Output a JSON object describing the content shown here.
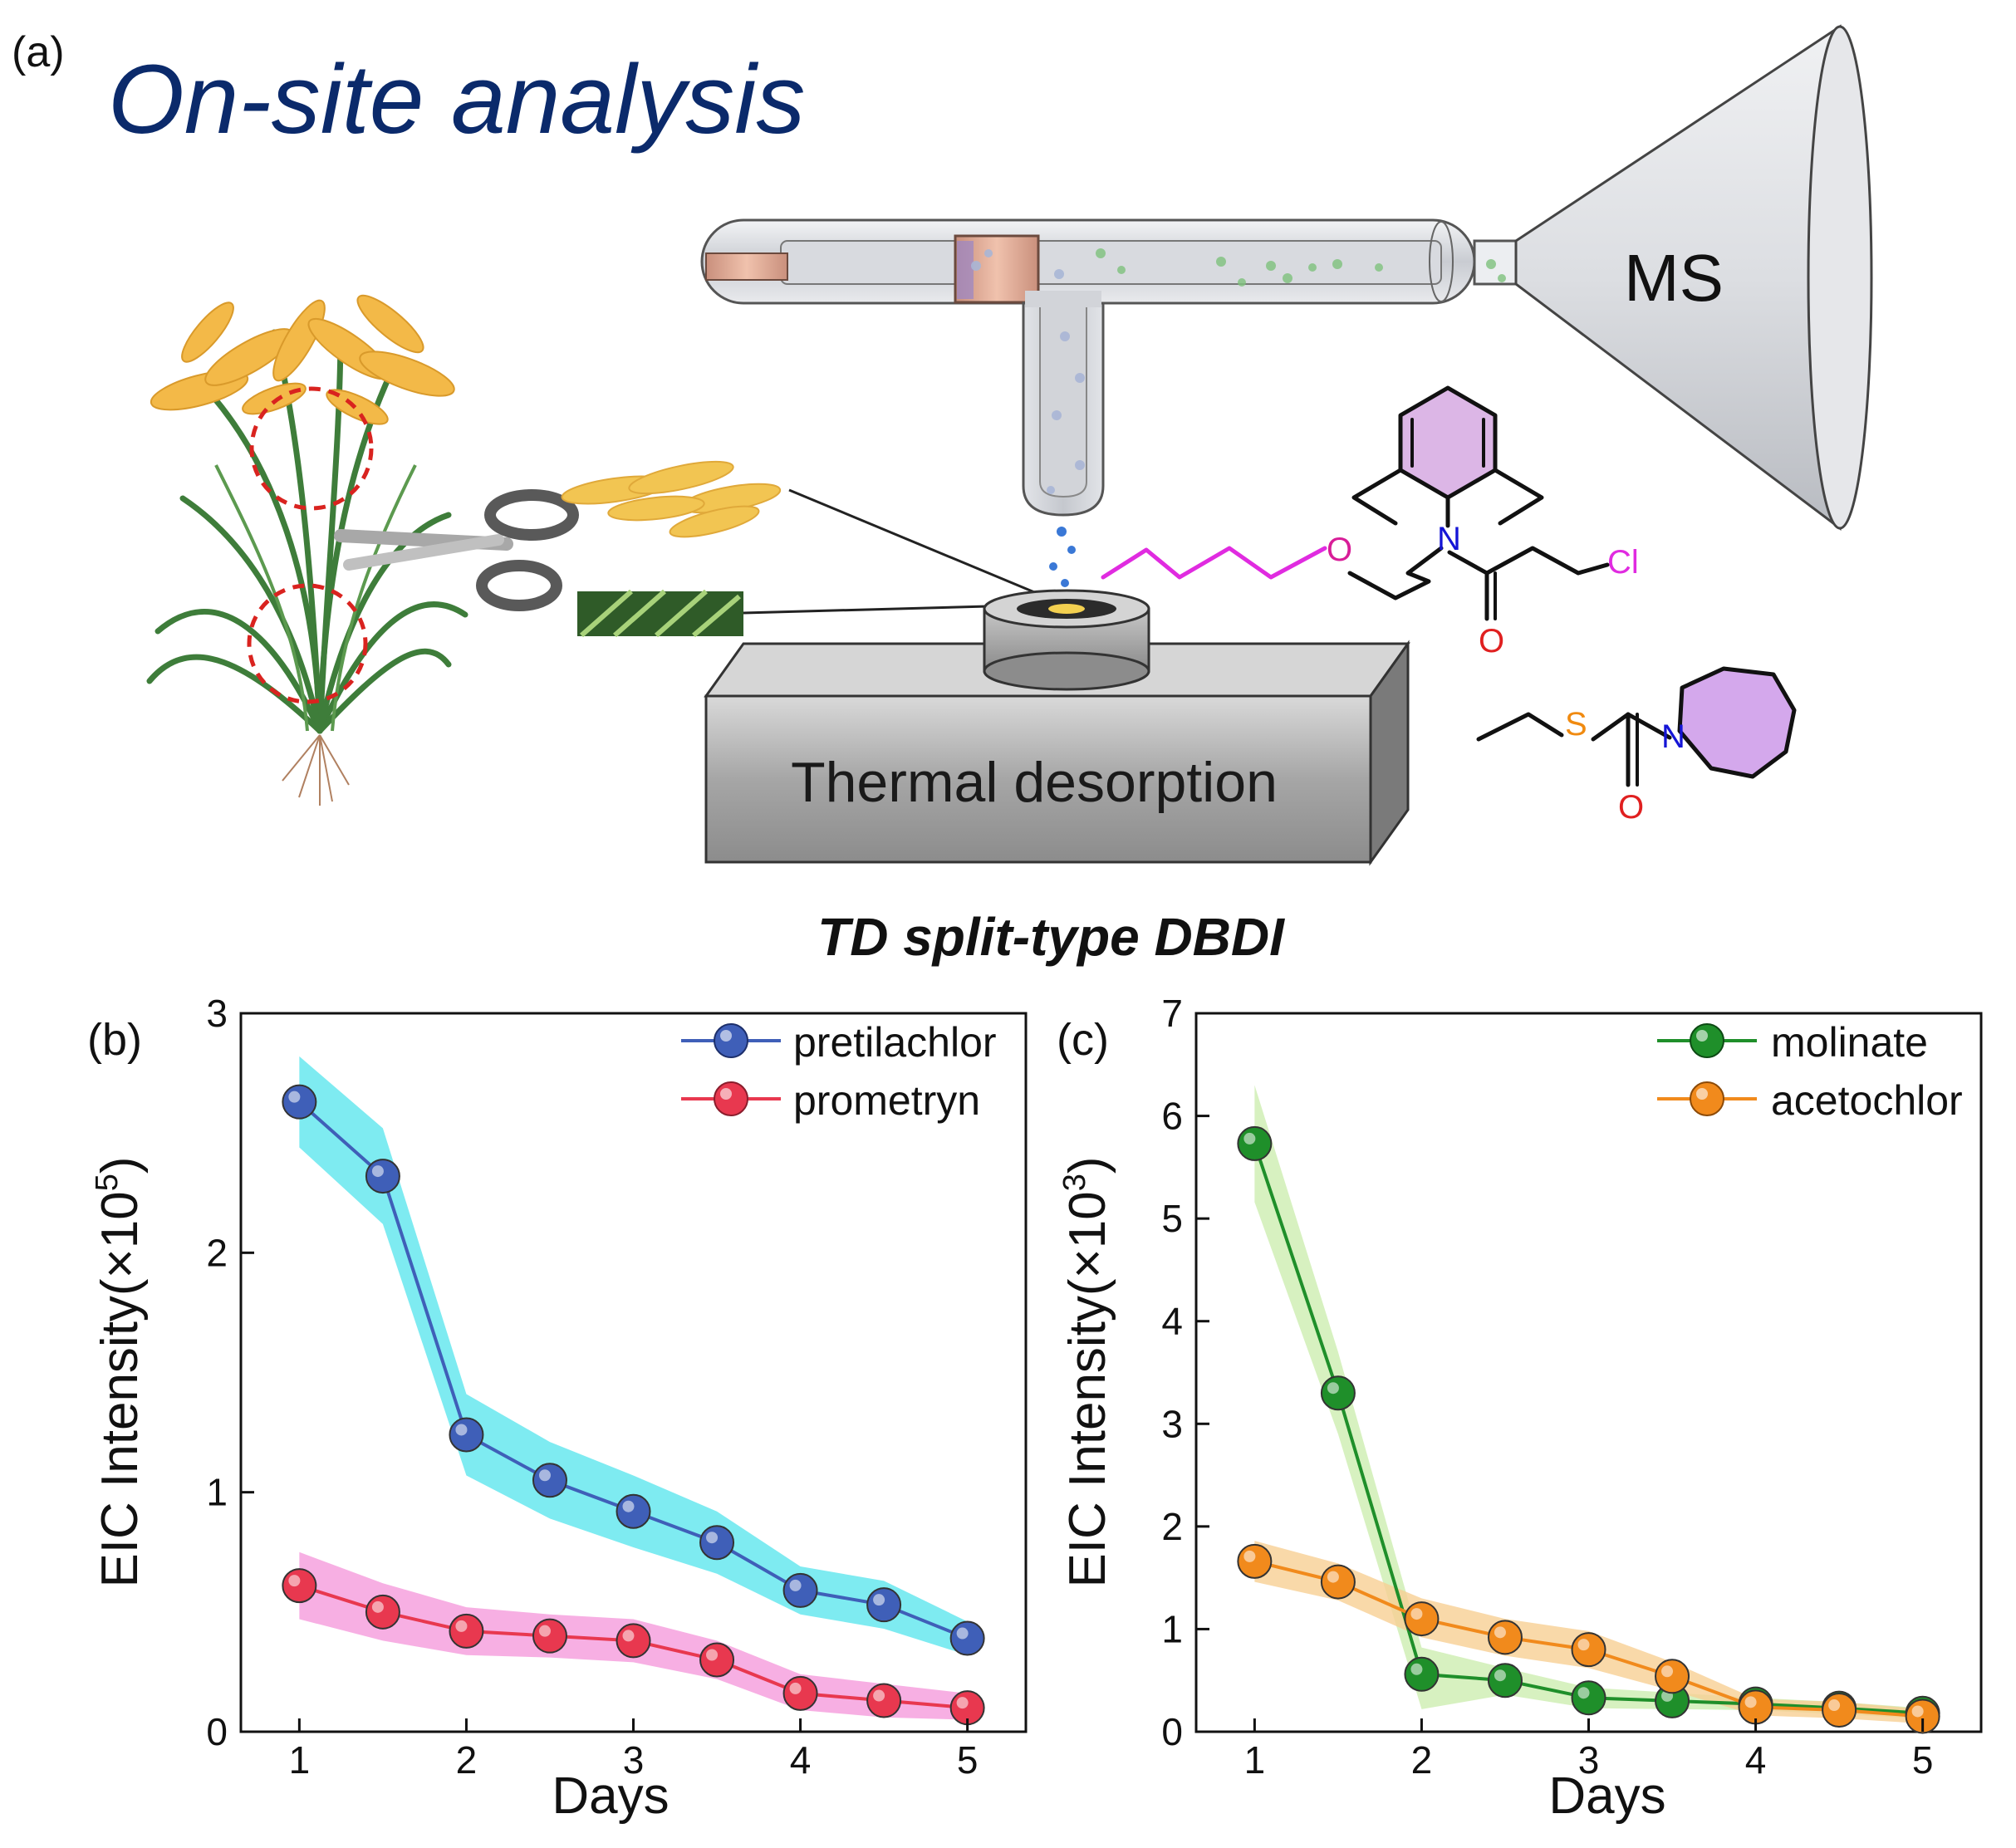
{
  "panel_a": {
    "label": "(a)",
    "title": "On-site analysis",
    "ms_label": "MS",
    "desorption_label": "Thermal desorption",
    "caption": "TD split-type DBDI",
    "molecule1_atoms": {
      "n": "N",
      "o_chain": "O",
      "o_carbonyl": "O",
      "cl": "Cl"
    },
    "molecule2_atoms": {
      "s": "S",
      "n": "N",
      "o": "O"
    }
  },
  "colors": {
    "title_blue": "#0b2a6b",
    "pretilachlor": "#3f5fb8",
    "pretilachlor_band": "#5ee6ee",
    "prometryn": "#e8384f",
    "prometryn_band": "#f59bdc",
    "molinate": "#1f8f2a",
    "molinate_band": "#cdeeb0",
    "acetochlor": "#f18a1c",
    "acetochlor_band": "#f7cf94"
  },
  "chart_data": [
    {
      "panel_label": "(b)",
      "type": "line",
      "xlabel": "Days",
      "ylabel": "EIC Intensity(×10",
      "ylabel_exp": "5",
      "ylabel_close": ")",
      "xlim": [
        0.65,
        5.35
      ],
      "ylim": [
        0,
        3
      ],
      "xticks": [
        1,
        2,
        3,
        4,
        5
      ],
      "yticks": [
        0,
        1,
        2,
        3
      ],
      "legend_position": "top-right",
      "x": [
        1,
        1.5,
        2,
        2.5,
        3,
        3.5,
        4,
        4.5,
        5
      ],
      "series": [
        {
          "name": "pretilachlor",
          "color_key": "pretilachlor",
          "band_key": "pretilachlor_band",
          "values": [
            2.63,
            2.32,
            1.24,
            1.05,
            0.92,
            0.79,
            0.59,
            0.53,
            0.39
          ],
          "upper": [
            2.82,
            2.52,
            1.41,
            1.21,
            1.07,
            0.92,
            0.69,
            0.63,
            0.46
          ],
          "lower": [
            2.44,
            2.12,
            1.07,
            0.89,
            0.77,
            0.66,
            0.49,
            0.43,
            0.32
          ]
        },
        {
          "name": "prometryn",
          "color_key": "prometryn",
          "band_key": "prometryn_band",
          "values": [
            0.61,
            0.5,
            0.42,
            0.4,
            0.38,
            0.3,
            0.16,
            0.13,
            0.1
          ],
          "upper": [
            0.75,
            0.62,
            0.52,
            0.49,
            0.47,
            0.38,
            0.24,
            0.2,
            0.16
          ],
          "lower": [
            0.47,
            0.38,
            0.32,
            0.31,
            0.29,
            0.22,
            0.09,
            0.06,
            0.05
          ]
        }
      ]
    },
    {
      "panel_label": "(c)",
      "type": "line",
      "xlabel": "Days",
      "ylabel": "EIC Intensity(×10",
      "ylabel_exp": "3",
      "ylabel_close": ")",
      "xlim": [
        0.65,
        5.35
      ],
      "ylim": [
        0,
        7
      ],
      "xticks": [
        1,
        2,
        3,
        4,
        5
      ],
      "yticks": [
        0,
        1,
        2,
        3,
        4,
        5,
        6,
        7
      ],
      "legend_position": "top-right",
      "x": [
        1,
        1.5,
        2,
        2.5,
        3,
        3.5,
        4,
        4.5,
        5
      ],
      "series": [
        {
          "name": "molinate",
          "color_key": "molinate",
          "band_key": "molinate_band",
          "values": [
            5.73,
            3.3,
            0.56,
            0.5,
            0.33,
            0.3,
            0.27,
            0.23,
            0.18
          ],
          "upper": [
            6.3,
            3.7,
            0.82,
            0.62,
            0.43,
            0.38,
            0.33,
            0.29,
            0.23
          ],
          "lower": [
            5.16,
            2.9,
            0.22,
            0.36,
            0.23,
            0.22,
            0.21,
            0.17,
            0.13
          ]
        },
        {
          "name": "acetochlor",
          "color_key": "acetochlor",
          "band_key": "acetochlor_band",
          "values": [
            1.66,
            1.46,
            1.1,
            0.92,
            0.8,
            0.54,
            0.24,
            0.21,
            0.15
          ],
          "upper": [
            1.86,
            1.64,
            1.3,
            1.1,
            0.98,
            0.68,
            0.32,
            0.29,
            0.22
          ],
          "lower": [
            1.46,
            1.28,
            0.92,
            0.74,
            0.62,
            0.4,
            0.16,
            0.13,
            0.08
          ]
        }
      ]
    }
  ]
}
